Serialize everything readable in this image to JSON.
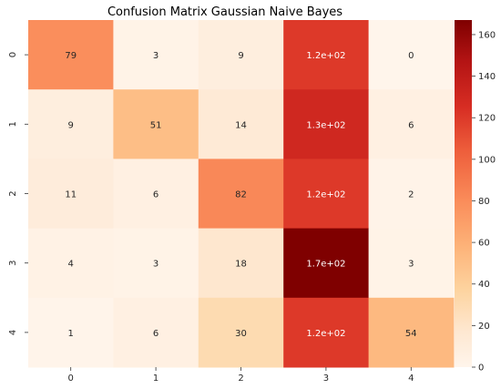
{
  "chart_data": {
    "type": "heatmap",
    "title": "Confusion Matrix Gaussian Naive Bayes",
    "xlabel": "",
    "ylabel": "",
    "x_ticks": [
      "0",
      "1",
      "2",
      "3",
      "4"
    ],
    "y_ticks": [
      "0",
      "1",
      "2",
      "3",
      "4"
    ],
    "values": [
      [
        79,
        3,
        9,
        120,
        0
      ],
      [
        9,
        51,
        14,
        130,
        6
      ],
      [
        11,
        6,
        82,
        120,
        2
      ],
      [
        4,
        3,
        18,
        170,
        3
      ],
      [
        1,
        6,
        30,
        120,
        54
      ]
    ],
    "annotations": [
      [
        "79",
        "3",
        "9",
        "1.2e+02",
        "0"
      ],
      [
        "9",
        "51",
        "14",
        "1.3e+02",
        "6"
      ],
      [
        "11",
        "6",
        "82",
        "1.2e+02",
        "2"
      ],
      [
        "4",
        "3",
        "18",
        "1.7e+02",
        "3"
      ],
      [
        "1",
        "6",
        "30",
        "1.2e+02",
        "54"
      ]
    ],
    "colormap": "OrRd-like (light cream to dark red)",
    "vmin": 0,
    "vmax": 167,
    "colorbar_ticks": [
      "0",
      "20",
      "40",
      "60",
      "80",
      "100",
      "120",
      "140",
      "160"
    ],
    "colorbar_tick_values": [
      0,
      20,
      40,
      60,
      80,
      100,
      120,
      140,
      160
    ],
    "grid": false
  }
}
